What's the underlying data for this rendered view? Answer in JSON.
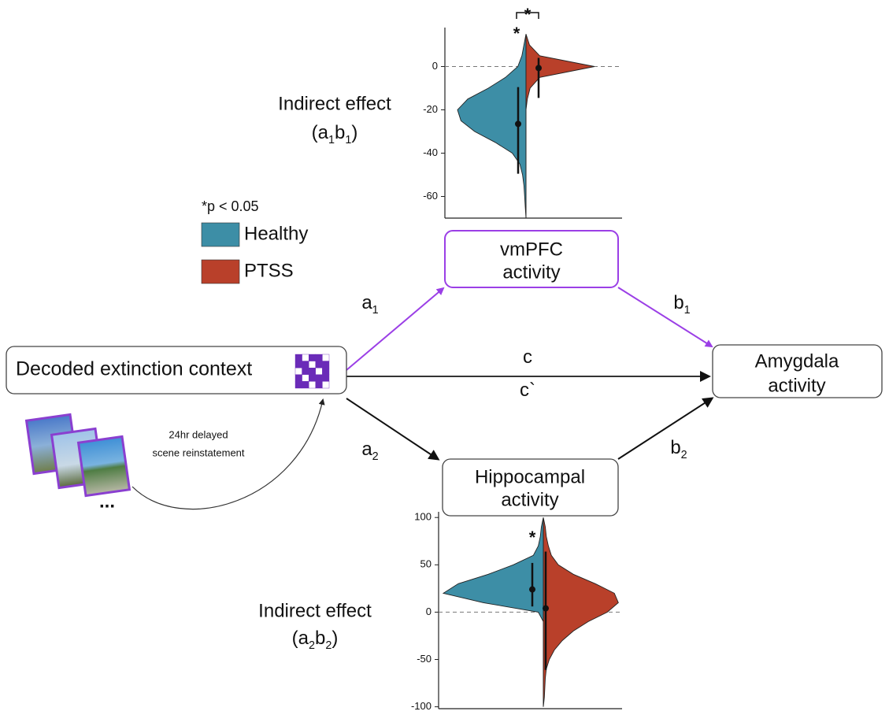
{
  "legend_note": "*p < 0.05",
  "nodes": [
    {
      "lines": [
        "Decoded extinction context"
      ]
    },
    {
      "lines": [
        "vmPFC",
        "activity"
      ]
    },
    {
      "lines": [
        "Amygdala",
        "activity"
      ]
    },
    {
      "lines": [
        "Hippocampal",
        "activity"
      ]
    }
  ],
  "path_labels": [
    [
      "a",
      "1"
    ],
    [
      "b",
      "1"
    ],
    [
      "c"
    ],
    [
      "c`"
    ],
    [
      "a",
      "2"
    ],
    [
      "b",
      "2"
    ]
  ],
  "reinstatement": {
    "lines": [
      "24hr delayed",
      "scene reinstatement"
    ],
    "more": "..."
  },
  "chart_data": [
    {
      "type": "violin",
      "ylabel": "Indirect effect",
      "ylabel_formula": [
        "(a",
        "1",
        "b",
        "1",
        ")"
      ],
      "ylim": [
        -70,
        18
      ],
      "yticks": [
        0,
        -20,
        -40,
        -60
      ],
      "reference_line": 0,
      "y": [
        15,
        10,
        5,
        0,
        -5,
        -10,
        -15,
        -20,
        -25,
        -30,
        -35,
        -40,
        -45,
        -50,
        -55,
        -60,
        -65,
        -70
      ],
      "series": [
        {
          "name": "Healthy",
          "color": "#3d8ea6",
          "side": "left",
          "density": [
            0,
            0.03,
            0.06,
            0.12,
            0.3,
            0.55,
            0.85,
            1.0,
            0.95,
            0.75,
            0.45,
            0.2,
            0.09,
            0.05,
            0.03,
            0.02,
            0.01,
            0
          ],
          "estimate": -26.5,
          "ci": [
            -49.5,
            -9.5
          ]
        },
        {
          "name": "PTSS",
          "color": "#b9402a",
          "side": "right",
          "density": [
            0,
            0.05,
            0.2,
            1.0,
            0.2,
            0.06,
            0.02,
            0,
            0,
            0,
            0,
            0,
            0,
            0,
            0,
            0,
            0,
            0
          ],
          "estimate": -0.7,
          "ci": [
            -14.5,
            4
          ]
        }
      ],
      "annotations": [
        "*",
        "*"
      ]
    },
    {
      "type": "violin",
      "ylabel": "Indirect effect",
      "ylabel_formula": [
        "(a",
        "2",
        "b",
        "2",
        ")"
      ],
      "ylim": [
        -102,
        106
      ],
      "yticks": [
        100,
        50,
        0,
        -50,
        {
          "value": -100,
          "label": "-100"
        }
      ],
      "reference_line": 0,
      "y": [
        100,
        90,
        80,
        70,
        60,
        50,
        40,
        30,
        20,
        10,
        0,
        -10,
        -20,
        -30,
        -40,
        -50,
        -60,
        -70,
        -80,
        -90,
        -100
      ],
      "series": [
        {
          "color": "#3d8ea6",
          "side": "left",
          "density": [
            0,
            0.02,
            0.03,
            0.05,
            0.1,
            0.3,
            0.55,
            0.85,
            1.0,
            0.6,
            0.05,
            0,
            0,
            0,
            0,
            0,
            0,
            0,
            0,
            0,
            0
          ],
          "estimate": 24,
          "ci": [
            6,
            52
          ]
        },
        {
          "color": "#b9402a",
          "side": "right",
          "density": [
            0,
            0.02,
            0.03,
            0.05,
            0.08,
            0.15,
            0.3,
            0.52,
            0.71,
            0.75,
            0.64,
            0.45,
            0.3,
            0.19,
            0.11,
            0.06,
            0.03,
            0.02,
            0.015,
            0.01,
            0
          ],
          "estimate": 4,
          "ci": [
            -61,
            64
          ]
        }
      ],
      "annotations": [
        "*"
      ]
    }
  ]
}
